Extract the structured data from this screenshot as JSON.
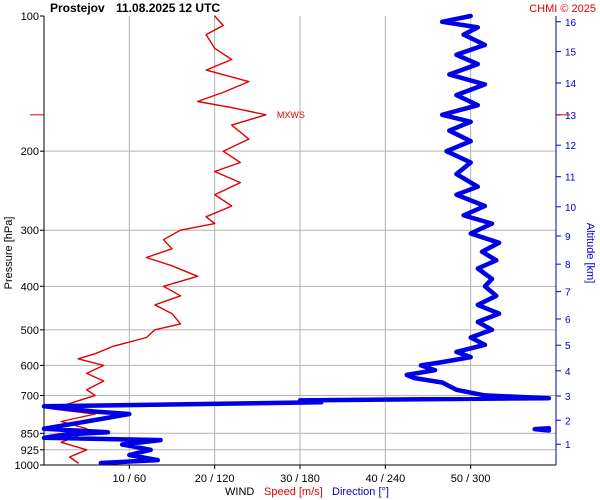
{
  "header": {
    "station": "Prostejov",
    "datetime": "11.08.2025 12 UTC",
    "credit": "CHMI © 2025"
  },
  "colors": {
    "speed": "#e00000",
    "direction": "#0000e6",
    "altitude_axis": "#0000c8",
    "grid": "#b4b4b4"
  },
  "chart_data": {
    "type": "line",
    "title": "Prostejov    11.08.2025 12 UTC",
    "ylabel": "Pressure [hPa]",
    "y_scale": "log",
    "ylim": [
      1000,
      100
    ],
    "y_ticks": [
      "100",
      "200",
      "300",
      "400",
      "500",
      "600",
      "700",
      "850",
      "925",
      "1000"
    ],
    "y_tick_values": [
      100,
      200,
      300,
      400,
      500,
      600,
      700,
      850,
      925,
      1000
    ],
    "x_axis_label": "WIND",
    "x_ticks": [
      "10 / 60",
      "20 / 120",
      "30 / 180",
      "40 / 240",
      "50 / 300"
    ],
    "x_tick_speed_values": [
      10,
      20,
      30,
      40,
      50
    ],
    "speed_xlim": [
      0,
      60
    ],
    "direction_xlim": [
      0,
      360
    ],
    "right_axis": {
      "label": "Altitude [km]",
      "ticks": [
        "1",
        "2",
        "3",
        "4",
        "5",
        "6",
        "7",
        "8",
        "9",
        "10",
        "11",
        "12",
        "13",
        "14",
        "15",
        "16"
      ],
      "tick_pressures": [
        899,
        795,
        702,
        617,
        541,
        473,
        411,
        357,
        309,
        266,
        228,
        194,
        166,
        141,
        120,
        103
      ]
    },
    "series": [
      {
        "name": "Speed [m/s]",
        "axis": "speed",
        "points": [
          [
            20,
            100
          ],
          [
            21,
            105
          ],
          [
            19,
            110
          ],
          [
            20,
            118
          ],
          [
            22,
            125
          ],
          [
            19,
            132
          ],
          [
            24,
            140
          ],
          [
            21,
            148
          ],
          [
            18,
            155
          ],
          [
            22,
            160
          ],
          [
            26,
            166
          ],
          [
            22,
            175
          ],
          [
            24,
            188
          ],
          [
            21,
            200
          ],
          [
            23,
            212
          ],
          [
            20,
            222
          ],
          [
            23,
            235
          ],
          [
            20,
            250
          ],
          [
            22,
            265
          ],
          [
            19,
            280
          ],
          [
            20,
            290
          ],
          [
            16,
            300
          ],
          [
            14,
            315
          ],
          [
            15,
            330
          ],
          [
            12,
            345
          ],
          [
            15,
            360
          ],
          [
            18,
            380
          ],
          [
            14,
            400
          ],
          [
            16,
            420
          ],
          [
            13,
            440
          ],
          [
            15,
            460
          ],
          [
            16,
            485
          ],
          [
            13,
            500
          ],
          [
            12,
            520
          ],
          [
            8,
            545
          ],
          [
            6,
            565
          ],
          [
            4,
            580
          ],
          [
            7,
            600
          ],
          [
            5,
            625
          ],
          [
            7,
            650
          ],
          [
            5,
            680
          ],
          [
            6,
            700
          ],
          [
            3,
            730
          ],
          [
            1,
            750
          ],
          [
            6,
            770
          ],
          [
            2,
            800
          ],
          [
            5,
            830
          ],
          [
            4,
            860
          ],
          [
            2,
            890
          ],
          [
            5,
            925
          ],
          [
            3,
            960
          ],
          [
            4,
            990
          ]
        ]
      },
      {
        "name": "Direction [°]",
        "axis": "direction",
        "points": [
          [
            300,
            100
          ],
          [
            280,
            103
          ],
          [
            305,
            106
          ],
          [
            295,
            110
          ],
          [
            310,
            116
          ],
          [
            290,
            122
          ],
          [
            305,
            128
          ],
          [
            285,
            135
          ],
          [
            310,
            142
          ],
          [
            290,
            150
          ],
          [
            305,
            158
          ],
          [
            280,
            166
          ],
          [
            300,
            172
          ],
          [
            285,
            180
          ],
          [
            300,
            190
          ],
          [
            283,
            200
          ],
          [
            300,
            212
          ],
          [
            290,
            225
          ],
          [
            305,
            240
          ],
          [
            290,
            250
          ],
          [
            310,
            265
          ],
          [
            295,
            278
          ],
          [
            315,
            290
          ],
          [
            300,
            305
          ],
          [
            320,
            320
          ],
          [
            308,
            335
          ],
          [
            318,
            350
          ],
          [
            305,
            365
          ],
          [
            315,
            385
          ],
          [
            310,
            400
          ],
          [
            318,
            420
          ],
          [
            305,
            440
          ],
          [
            320,
            460
          ],
          [
            305,
            480
          ],
          [
            315,
            500
          ],
          [
            300,
            520
          ],
          [
            310,
            540
          ],
          [
            290,
            560
          ],
          [
            300,
            575
          ],
          [
            280,
            590
          ],
          [
            265,
            600
          ],
          [
            275,
            615
          ],
          [
            255,
            630
          ],
          [
            260,
            640
          ],
          [
            280,
            655
          ],
          [
            290,
            680
          ],
          [
            310,
            700
          ],
          [
            355,
            710
          ],
          [
            180,
            718
          ],
          [
            195,
            725
          ],
          [
            0,
            740
          ],
          [
            35,
            760
          ],
          [
            60,
            770
          ],
          [
            40,
            790
          ],
          [
            25,
            805
          ],
          [
            0,
            830
          ],
          [
            45,
            845
          ],
          [
            15,
            855
          ],
          [
            0,
            870
          ],
          [
            82,
            880
          ],
          [
            55,
            900
          ],
          [
            75,
            925
          ],
          [
            60,
            950
          ],
          [
            80,
            975
          ],
          [
            40,
            990
          ]
        ]
      },
      {
        "name": "Direction [°] (upper segment)",
        "axis": "direction",
        "points": [
          [
            355,
            828
          ],
          [
            345,
            832
          ],
          [
            355,
            838
          ]
        ]
      }
    ],
    "annotation": {
      "text": "MXWS",
      "pressure": 166,
      "speed": 26
    }
  },
  "legend_row": {
    "wind": "WIND",
    "speed": "Speed [m/s]",
    "direction": "Direction [°]"
  }
}
